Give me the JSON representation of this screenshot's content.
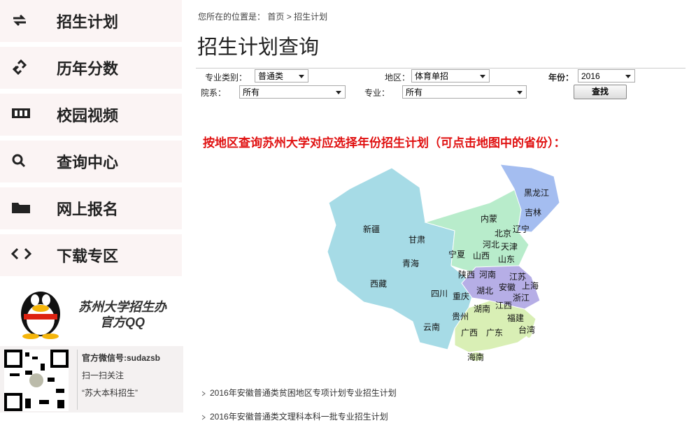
{
  "sidebar": {
    "menu": [
      "招生计划",
      "历年分数",
      "校园视频",
      "查询中心",
      "网上报名",
      "下载专区"
    ],
    "qq": {
      "line1": "苏州大学招生办",
      "line2": "官方QQ"
    },
    "wechat": {
      "line1": "官方微信号:sudazsb",
      "line2": "扫一扫关注",
      "line3": "“苏大本科招生”"
    }
  },
  "breadcrumb": {
    "prefix": "您所在的位置是：",
    "home": "首页",
    "separator": ">",
    "current": "招生计划"
  },
  "title": "招生计划查询",
  "form": {
    "category_label": "专业类别：",
    "category": "普通类",
    "region_label": "地区：",
    "region": "体育单招",
    "year_label": "年份：",
    "year": "2016",
    "dept_label": "院系：",
    "dept": "所有",
    "major_label": "专业：",
    "major": "所有",
    "button": "查找"
  },
  "map": {
    "heading": "按地区查询苏州大学对应选择年份招生计划（可点击地图中的省份）：",
    "provinces": [
      "黑龙江",
      "吉林",
      "辽宁",
      "内蒙",
      "北京",
      "河北",
      "天津",
      "宁夏",
      "山西",
      "山东",
      "新疆",
      "甘肃",
      "青海",
      "陕西",
      "河南",
      "江苏",
      "上海",
      "安徽",
      "湖北",
      "浙江",
      "西藏",
      "四川",
      "重庆",
      "湖南",
      "江西",
      "贵州",
      "福建",
      "云南",
      "广西",
      "广东",
      "台湾",
      "海南"
    ]
  },
  "links": [
    "2016年安徽普通类贫困地区专项计划专业招生计划",
    "2016年安徽普通类文理科本科一批专业招生计划"
  ]
}
